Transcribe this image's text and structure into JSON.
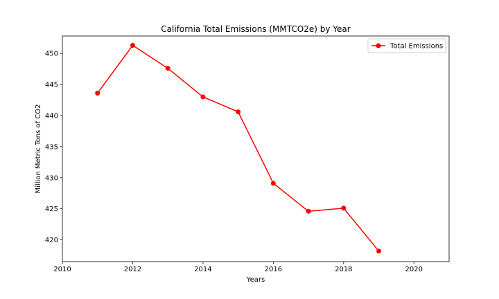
{
  "chart_data": {
    "type": "line",
    "title": "California Total Emissions (MMTCO2e) by Year",
    "xlabel": "Years",
    "ylabel": "Million Metric Tons of CO2",
    "xlim": [
      2010,
      2021
    ],
    "ylim": [
      416.5,
      452.8
    ],
    "x_ticks": [
      2010,
      2012,
      2014,
      2016,
      2018,
      2020
    ],
    "y_ticks": [
      420,
      425,
      430,
      435,
      440,
      445,
      450
    ],
    "grid": false,
    "legend_position": "top-right",
    "series": [
      {
        "name": "Total Emissions",
        "color": "#ff0000",
        "marker": "circle",
        "x": [
          2011,
          2012,
          2013,
          2014,
          2015,
          2016,
          2017,
          2018,
          2019
        ],
        "y": [
          443.6,
          451.3,
          447.6,
          443.0,
          440.6,
          429.1,
          424.6,
          425.1,
          418.2
        ]
      }
    ]
  }
}
